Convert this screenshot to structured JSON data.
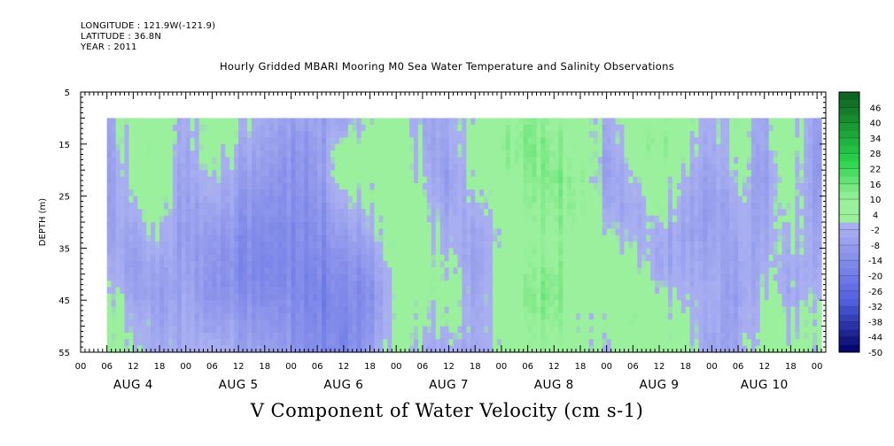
{
  "header": {
    "longitude": "LONGITUDE : 121.9W(-121.9)",
    "latitude": "LATITUDE : 36.8N",
    "year": "YEAR : 2011"
  },
  "chart_data": {
    "type": "heatmap",
    "title": "Hourly Gridded MBARI Mooring M0 Sea Water Temperature and Salinity Observations",
    "xlabel": "V Component of Water Velocity (cm s-1)",
    "ylabel": "DEPTH (m)",
    "y_ticks": [
      "5",
      "15",
      "25",
      "35",
      "45",
      "55"
    ],
    "ylim": [
      5,
      55
    ],
    "y_inverted": true,
    "x_hour_ticks": [
      "00",
      "06",
      "12",
      "18",
      "00",
      "06",
      "12",
      "18",
      "00",
      "06",
      "12",
      "18",
      "00",
      "06",
      "12",
      "18",
      "00",
      "06",
      "12",
      "18",
      "00",
      "06",
      "12",
      "18",
      "00",
      "06",
      "12",
      "18",
      "00"
    ],
    "x_days": [
      "AUG  4",
      "AUG  5",
      "AUG  6",
      "AUG  7",
      "AUG  8",
      "AUG  9",
      "AUG 10"
    ],
    "xlim_hours": [
      0,
      170
    ],
    "data_start_hour": 6,
    "data_end_hour": 169,
    "data_depth_range": [
      10,
      55
    ],
    "colorbar_levels": [
      "46",
      "40",
      "34",
      "28",
      "22",
      "16",
      "10",
      "4",
      "-2",
      "-8",
      "-14",
      "-20",
      "-26",
      "-32",
      "-38",
      "-44",
      "-50"
    ],
    "colorbar_range": [
      -50,
      52
    ],
    "colors": {
      "strong_positive": "#0d5e1e",
      "mid_positive": "#27d44a",
      "weak_positive": "#9af09c",
      "weak_negative": "#a8aef0",
      "mid_negative": "#5060e0",
      "strong_negative": "#000066"
    },
    "columns": [
      {
        "hour": 6,
        "profile": [
          -6,
          -8,
          -9,
          -8,
          -6,
          -3,
          2,
          4,
          2
        ]
      },
      {
        "hour": 12,
        "profile": [
          5,
          6,
          4,
          2,
          -4,
          -6,
          -5,
          1,
          3
        ]
      },
      {
        "hour": 18,
        "profile": [
          8,
          10,
          9,
          6,
          2,
          -3,
          -6,
          -4,
          -2
        ]
      },
      {
        "hour": 24,
        "profile": [
          -4,
          -6,
          -8,
          -9,
          -10,
          -8,
          -6,
          -4,
          -3
        ]
      },
      {
        "hour": 30,
        "profile": [
          4,
          6,
          3,
          -2,
          -6,
          -9,
          -10,
          -6,
          2
        ]
      },
      {
        "hour": 36,
        "profile": [
          2,
          -2,
          -6,
          -9,
          -12,
          -14,
          -12,
          -8,
          -5
        ]
      },
      {
        "hour": 42,
        "profile": [
          -3,
          -6,
          -9,
          -12,
          -14,
          -16,
          -14,
          -10,
          -6
        ]
      },
      {
        "hour": 48,
        "profile": [
          -8,
          -10,
          -12,
          -13,
          -14,
          -15,
          -14,
          -12,
          -10
        ]
      },
      {
        "hour": 54,
        "profile": [
          -6,
          -9,
          -10,
          -12,
          -14,
          -16,
          -18,
          -16,
          -14
        ]
      },
      {
        "hour": 60,
        "profile": [
          -8,
          2,
          4,
          -4,
          -10,
          -14,
          -16,
          -18,
          -18
        ]
      },
      {
        "hour": 66,
        "profile": [
          4,
          6,
          5,
          2,
          -2,
          -8,
          -12,
          -10,
          -6
        ]
      },
      {
        "hour": 72,
        "profile": [
          6,
          4,
          2,
          4,
          6,
          4,
          2,
          3,
          2
        ]
      },
      {
        "hour": 78,
        "profile": [
          -4,
          -2,
          2,
          4,
          6,
          5,
          4,
          2,
          -2
        ]
      },
      {
        "hour": 84,
        "profile": [
          -2,
          -6,
          -8,
          -6,
          -2,
          2,
          4,
          2,
          -3
        ]
      },
      {
        "hour": 90,
        "profile": [
          2,
          4,
          2,
          -2,
          -6,
          -8,
          -6,
          -4,
          -6
        ]
      },
      {
        "hour": 96,
        "profile": [
          10,
          12,
          10,
          6,
          4,
          6,
          8,
          6,
          4
        ]
      },
      {
        "hour": 102,
        "profile": [
          12,
          14,
          12,
          10,
          8,
          10,
          12,
          10,
          8
        ]
      },
      {
        "hour": 108,
        "profile": [
          10,
          12,
          14,
          12,
          10,
          12,
          14,
          12,
          10
        ]
      },
      {
        "hour": 114,
        "profile": [
          6,
          8,
          10,
          10,
          8,
          6,
          4,
          2,
          4
        ]
      },
      {
        "hour": 120,
        "profile": [
          -2,
          -4,
          -6,
          -2,
          4,
          8,
          6,
          4,
          2
        ]
      },
      {
        "hour": 126,
        "profile": [
          6,
          4,
          -2,
          -6,
          -4,
          2,
          6,
          8,
          6
        ]
      },
      {
        "hour": 132,
        "profile": [
          10,
          12,
          8,
          4,
          -2,
          -4,
          2,
          6,
          8
        ]
      },
      {
        "hour": 138,
        "profile": [
          4,
          2,
          -2,
          -4,
          -6,
          -4,
          -2,
          2,
          4
        ]
      },
      {
        "hour": 144,
        "profile": [
          -2,
          -4,
          -6,
          -8,
          -6,
          -4,
          -2,
          -4,
          -6
        ]
      },
      {
        "hour": 150,
        "profile": [
          2,
          4,
          2,
          -2,
          -4,
          -6,
          -8,
          -6,
          -4
        ]
      },
      {
        "hour": 156,
        "profile": [
          -4,
          -6,
          -8,
          -6,
          -4,
          -2,
          2,
          4,
          6
        ]
      },
      {
        "hour": 162,
        "profile": [
          6,
          8,
          6,
          4,
          2,
          -2,
          -4,
          2,
          4
        ]
      },
      {
        "hour": 168,
        "profile": [
          -6,
          -8,
          -8,
          -6,
          -4,
          -2,
          2,
          4,
          2
        ]
      }
    ]
  }
}
